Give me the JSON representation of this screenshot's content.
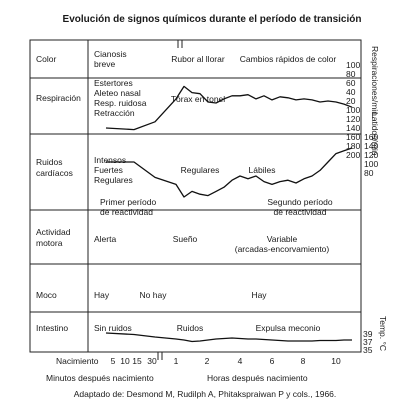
{
  "chart_data": {
    "type": "line",
    "title": "Evolución de signos químicos durante el período de transición",
    "caption": "Adaptado de: Desmond M, Rudilph A, Phitakspraiwan P y cols., 1966.",
    "rows": [
      {
        "label": "Color"
      },
      {
        "label": "Respiración"
      },
      {
        "label": "Ruidos\ncardíacos"
      },
      {
        "label": "Actividad\nmotora"
      },
      {
        "label": "Moco"
      },
      {
        "label": "Intestino"
      }
    ],
    "annotations": [
      {
        "text": "Cianosis\nbreve",
        "row": 0
      },
      {
        "text": "Rubor al llorar",
        "row": 0
      },
      {
        "text": "Cambios rápidos de color",
        "row": 0
      },
      {
        "text": "Estertores\nAleteo nasal\nResp. ruidosa\nRetracción",
        "row": 1
      },
      {
        "text": "Tórax en tonel",
        "row": 1
      },
      {
        "text": "Intensos\nFuertes\nRegulares",
        "row": 2
      },
      {
        "text": "Regulares",
        "row": 2
      },
      {
        "text": "Lábiles",
        "row": 2
      },
      {
        "text": "Primer período\nde reactividad",
        "row": 2
      },
      {
        "text": "Segundo período\nde reactividad",
        "row": 2
      },
      {
        "text": "Alerta",
        "row": 3
      },
      {
        "text": "Sueño",
        "row": 3
      },
      {
        "text": "Variable\n(arcadas-encorvamiento)",
        "row": 3
      },
      {
        "text": "Hay",
        "row": 4
      },
      {
        "text": "No hay",
        "row": 4
      },
      {
        "text": "Hay",
        "row": 4
      },
      {
        "text": "Sin ruidos",
        "row": 5
      },
      {
        "text": "Ruidos",
        "row": 5
      },
      {
        "text": "Expulsa meconio",
        "row": 5
      }
    ],
    "x_axis": {
      "origin_label": "Nacimiento",
      "minutes_label": "Minutos después nacimiento",
      "minutes_ticks": [
        "5",
        "10",
        "15",
        "30"
      ],
      "hours_label": "Horas después nacimiento",
      "hours_ticks": [
        "1",
        "2",
        "4",
        "6",
        "8",
        "10"
      ]
    },
    "right_axes": [
      {
        "label": "Respiraciones/min.",
        "ticks": [
          "100",
          "80",
          "60",
          "40",
          "20",
          "100",
          "120",
          "140",
          "160",
          "180",
          "200"
        ]
      },
      {
        "label": "Latidos/min.",
        "ticks": [
          "180",
          "160",
          "140",
          "120",
          "100",
          "80"
        ]
      },
      {
        "label": "Temp. °C",
        "ticks": [
          "39",
          "37",
          "35"
        ]
      }
    ],
    "series": [
      {
        "name": "Respiraciones/min.",
        "points": [
          [
            -5,
            0
          ],
          [
            -3,
            -3
          ],
          [
            -1.5,
            12
          ],
          [
            0,
            56
          ],
          [
            0.5,
            80
          ],
          [
            1,
            68
          ],
          [
            1.5,
            66
          ],
          [
            2,
            50
          ],
          [
            2.5,
            48
          ],
          [
            3,
            56
          ],
          [
            3.5,
            62
          ],
          [
            4,
            62
          ],
          [
            4.5,
            64
          ],
          [
            5,
            56
          ],
          [
            5.5,
            62
          ],
          [
            6,
            54
          ],
          [
            6.5,
            60
          ],
          [
            7,
            58
          ],
          [
            7.5,
            54
          ],
          [
            8,
            56
          ],
          [
            8.5,
            54
          ],
          [
            9,
            50
          ],
          [
            9.5,
            52
          ],
          [
            10,
            50
          ],
          [
            10.5,
            46
          ],
          [
            11,
            40
          ]
        ]
      },
      {
        "name": "Latidos/min.",
        "points": [
          [
            -5,
            160
          ],
          [
            -3,
            160
          ],
          [
            -1.5,
            138
          ],
          [
            0,
            128
          ],
          [
            0.5,
            110
          ],
          [
            1,
            118
          ],
          [
            1.5,
            114
          ],
          [
            2,
            112
          ],
          [
            2.5,
            118
          ],
          [
            3,
            124
          ],
          [
            3.5,
            134
          ],
          [
            4,
            140
          ],
          [
            4.5,
            136
          ],
          [
            5,
            140
          ],
          [
            5.5,
            132
          ],
          [
            6,
            128
          ],
          [
            6.5,
            132
          ],
          [
            7,
            134
          ],
          [
            7.5,
            130
          ],
          [
            8,
            136
          ],
          [
            8.5,
            140
          ],
          [
            9,
            148
          ],
          [
            9.5,
            160
          ],
          [
            10,
            172
          ],
          [
            10.5,
            176
          ],
          [
            11,
            180
          ]
        ]
      },
      {
        "name": "Temp. °C",
        "points": [
          [
            -5,
            38.4
          ],
          [
            -3,
            38.1
          ],
          [
            -1.5,
            37.6
          ],
          [
            0,
            37.2
          ],
          [
            0.5,
            37.0
          ],
          [
            1,
            36.7
          ],
          [
            1.5,
            36.8
          ],
          [
            2,
            37.0
          ],
          [
            2.5,
            37.2
          ],
          [
            3,
            37.3
          ],
          [
            3.5,
            37.4
          ],
          [
            4,
            37.3
          ],
          [
            4.5,
            37.2
          ],
          [
            5,
            37.2
          ],
          [
            5.5,
            37.1
          ],
          [
            6,
            37.0
          ],
          [
            6.5,
            36.9
          ],
          [
            7,
            36.8
          ],
          [
            7.5,
            36.8
          ],
          [
            8,
            36.8
          ],
          [
            8.5,
            36.8
          ],
          [
            9,
            36.9
          ],
          [
            9.5,
            36.9
          ],
          [
            10,
            36.9
          ],
          [
            10.5,
            37.0
          ],
          [
            11,
            37.0
          ]
        ]
      }
    ]
  }
}
